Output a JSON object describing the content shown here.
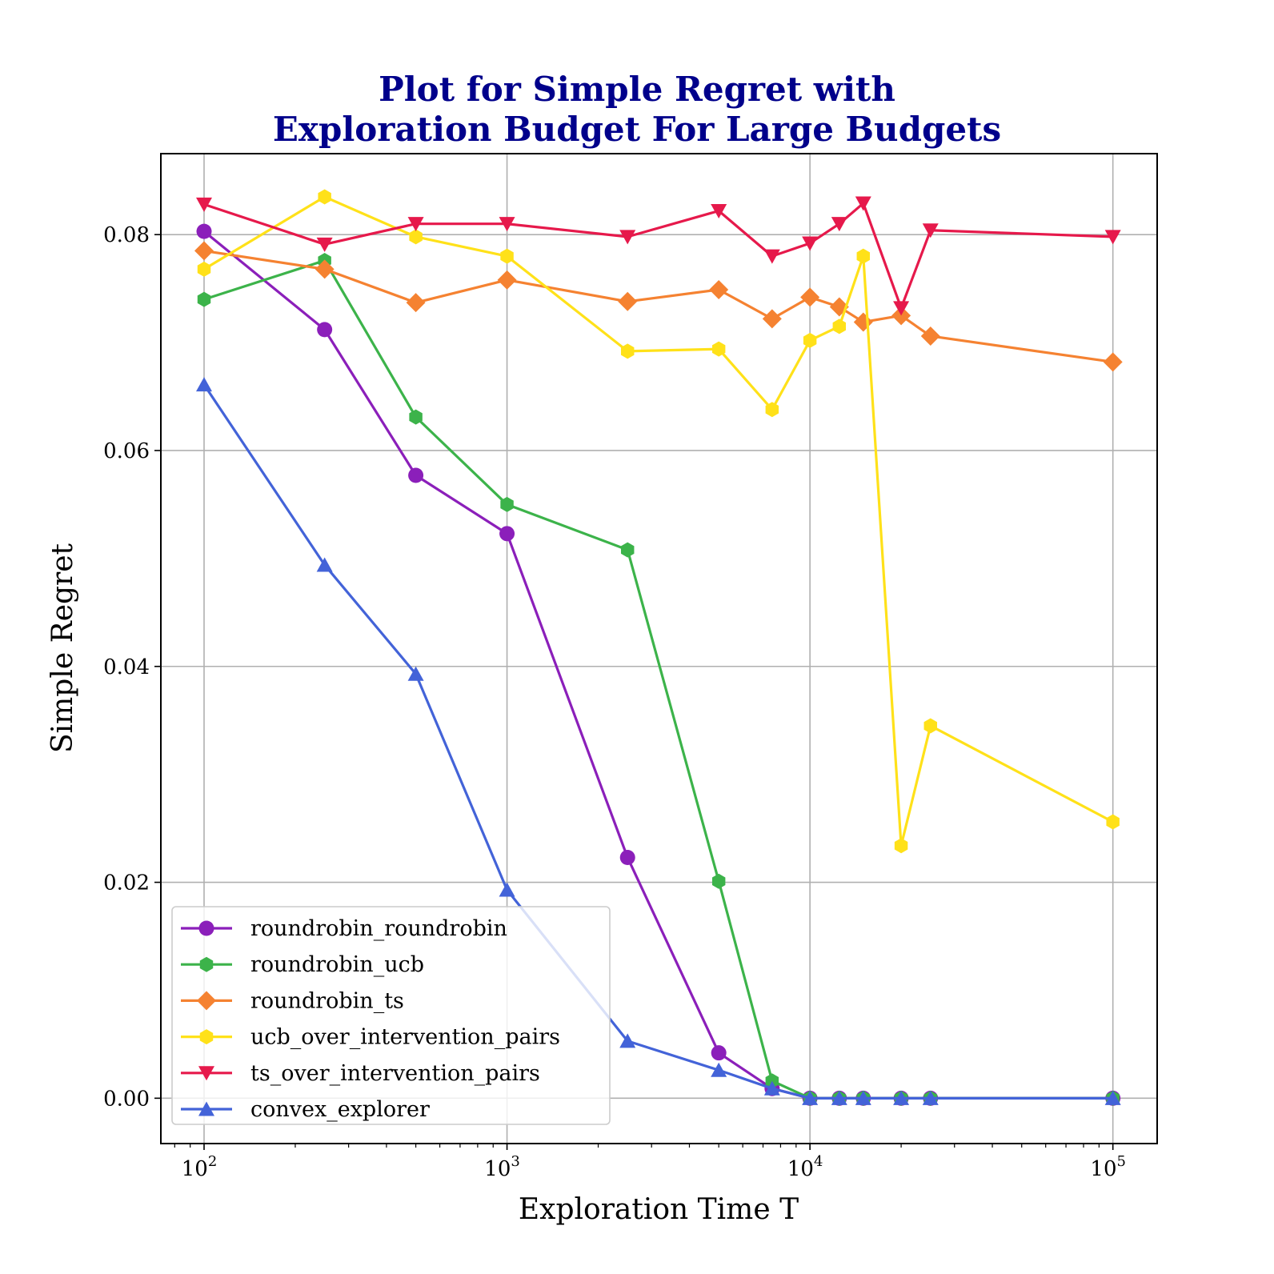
{
  "chart_data": {
    "type": "line",
    "title": [
      "Plot for Simple Regret with",
      "Exploration Budget For Large Budgets"
    ],
    "title_color": "#00008b",
    "xlabel": "Exploration Time T",
    "ylabel": "Simple Regret",
    "xscale": "log",
    "xlim": [
      72,
      140000
    ],
    "ylim": [
      -0.0042,
      0.0875
    ],
    "x_ticks": [
      100,
      1000,
      10000,
      100000
    ],
    "x_tick_labels": [
      {
        "base": "10",
        "exp": "2"
      },
      {
        "base": "10",
        "exp": "3"
      },
      {
        "base": "10",
        "exp": "4"
      },
      {
        "base": "10",
        "exp": "5"
      }
    ],
    "y_ticks": [
      0.0,
      0.02,
      0.04,
      0.06,
      0.08
    ],
    "y_tick_labels": [
      "0.00",
      "0.02",
      "0.04",
      "0.06",
      "0.08"
    ],
    "grid": true,
    "legend_position": "lower-left",
    "x": [
      100,
      250,
      500,
      1000,
      2500,
      5000,
      7500,
      10000,
      12500,
      15000,
      20000,
      25000,
      100000
    ],
    "series": [
      {
        "name": "roundrobin_roundrobin",
        "color": "#8b1fba",
        "marker": "circle",
        "values": [
          0.0803,
          0.0712,
          0.0577,
          0.0523,
          0.0223,
          0.0042,
          0.0009,
          0.0,
          0.0,
          0.0,
          0.0,
          0.0,
          0.0
        ]
      },
      {
        "name": "roundrobin_ucb",
        "color": "#3cb34a",
        "marker": "hexagon",
        "values": [
          0.074,
          0.0776,
          0.0631,
          0.055,
          0.0508,
          0.0201,
          0.0016,
          0.0,
          0.0,
          0.0,
          0.0,
          0.0,
          0.0
        ]
      },
      {
        "name": "roundrobin_ts",
        "color": "#f58231",
        "marker": "diamond",
        "values": [
          0.0785,
          0.0768,
          0.0737,
          0.0758,
          0.0738,
          0.0749,
          0.0722,
          0.0742,
          0.0733,
          0.0719,
          0.0725,
          0.0706,
          0.0682
        ]
      },
      {
        "name": "ucb_over_intervention_pairs",
        "color": "#ffe119",
        "marker": "hexagon",
        "values": [
          0.0768,
          0.0835,
          0.0798,
          0.078,
          0.0692,
          0.0694,
          0.0638,
          0.0702,
          0.0715,
          0.078,
          0.0234,
          0.0345,
          0.0256
        ]
      },
      {
        "name": "ts_over_intervention_pairs",
        "color": "#e6194b",
        "marker": "triangle-down",
        "values": [
          0.0828,
          0.0791,
          0.081,
          0.081,
          0.0798,
          0.0822,
          0.078,
          0.0792,
          0.081,
          0.0829,
          0.0732,
          0.0804,
          0.0798
        ]
      },
      {
        "name": "convex_explorer",
        "color": "#4363d8",
        "marker": "triangle-up",
        "values": [
          0.0661,
          0.0494,
          0.0393,
          0.0193,
          0.0053,
          0.0026,
          0.0009,
          0.0,
          0.0,
          0.0,
          0.0,
          0.0,
          0.0
        ]
      }
    ]
  }
}
